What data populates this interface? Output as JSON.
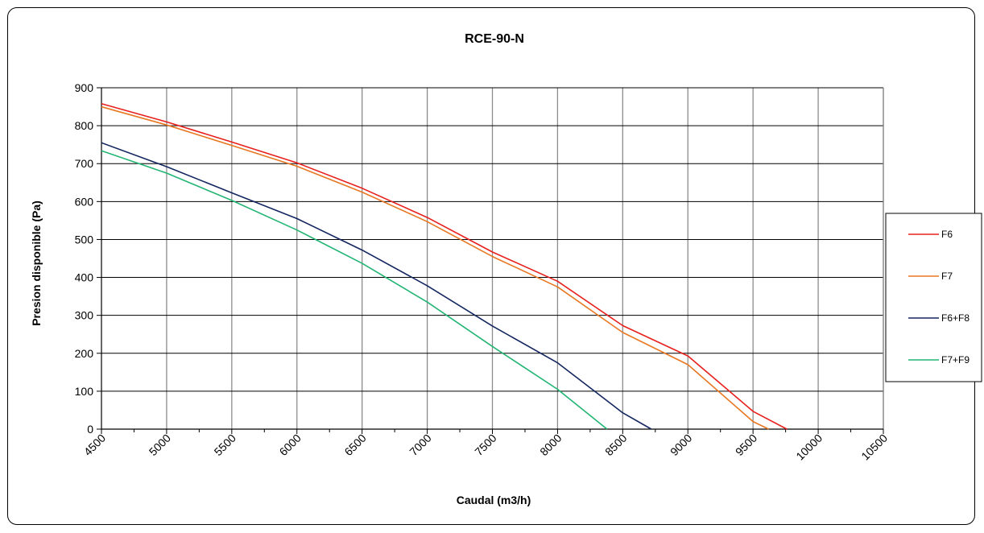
{
  "chart_data": {
    "type": "line",
    "title": "RCE-90-N",
    "xlabel": "Caudal (m3/h)",
    "ylabel": "Presion disponible (Pa)",
    "xlim": [
      4500,
      10500
    ],
    "ylim": [
      0,
      900
    ],
    "x_ticks": [
      4500,
      5000,
      5500,
      6000,
      6500,
      7000,
      7500,
      8000,
      8500,
      9000,
      9500,
      10000,
      10500
    ],
    "y_ticks": [
      0,
      100,
      200,
      300,
      400,
      500,
      600,
      700,
      800,
      900
    ],
    "grid": true,
    "legend_position": "right",
    "series": [
      {
        "name": "F6",
        "color": "#e8201d",
        "points": [
          [
            4500,
            858
          ],
          [
            5000,
            810
          ],
          [
            5500,
            757
          ],
          [
            6000,
            702
          ],
          [
            6500,
            635
          ],
          [
            7000,
            558
          ],
          [
            7500,
            467
          ],
          [
            8000,
            390
          ],
          [
            8500,
            273
          ],
          [
            9000,
            193
          ],
          [
            9500,
            47
          ],
          [
            9760,
            0
          ]
        ]
      },
      {
        "name": "F7",
        "color": "#e87722",
        "points": [
          [
            4500,
            850
          ],
          [
            5000,
            802
          ],
          [
            5500,
            748
          ],
          [
            6000,
            693
          ],
          [
            6500,
            625
          ],
          [
            7000,
            547
          ],
          [
            7500,
            455
          ],
          [
            8000,
            375
          ],
          [
            8500,
            255
          ],
          [
            9000,
            170
          ],
          [
            9500,
            20
          ],
          [
            9620,
            0
          ]
        ]
      },
      {
        "name": "F6+F8",
        "color": "#13265f",
        "points": [
          [
            4500,
            755
          ],
          [
            5000,
            692
          ],
          [
            5500,
            623
          ],
          [
            6000,
            555
          ],
          [
            6500,
            472
          ],
          [
            7000,
            378
          ],
          [
            7500,
            272
          ],
          [
            8000,
            175
          ],
          [
            8500,
            43
          ],
          [
            8720,
            0
          ]
        ]
      },
      {
        "name": "F7+F9",
        "color": "#22b573",
        "points": [
          [
            4500,
            734
          ],
          [
            5000,
            675
          ],
          [
            5500,
            603
          ],
          [
            6000,
            525
          ],
          [
            6500,
            437
          ],
          [
            7000,
            335
          ],
          [
            7500,
            218
          ],
          [
            8000,
            105
          ],
          [
            8380,
            0
          ]
        ]
      }
    ]
  }
}
